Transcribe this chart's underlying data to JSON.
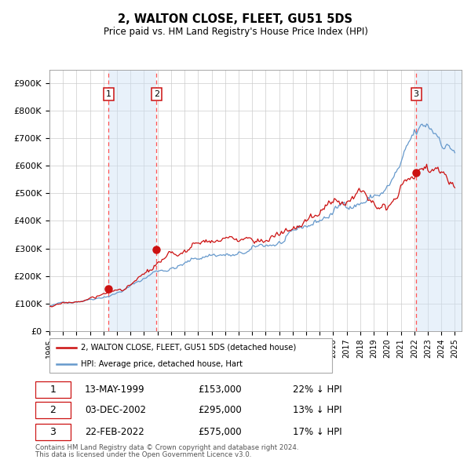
{
  "title": "2, WALTON CLOSE, FLEET, GU51 5DS",
  "subtitle": "Price paid vs. HM Land Registry's House Price Index (HPI)",
  "ytick_labels": [
    "£0",
    "£100K",
    "£200K",
    "£300K",
    "£400K",
    "£500K",
    "£600K",
    "£700K",
    "£800K",
    "£900K"
  ],
  "yticks": [
    0,
    100000,
    200000,
    300000,
    400000,
    500000,
    600000,
    700000,
    800000,
    900000
  ],
  "ylim": [
    0,
    950000
  ],
  "xlim_start": 1995,
  "xlim_end": 2025.5,
  "transactions": [
    {
      "label": "1",
      "date": "13-MAY-1999",
      "year": 1999.37,
      "price": 153000,
      "pct_text": "22% ↓ HPI"
    },
    {
      "label": "2",
      "date": "03-DEC-2002",
      "year": 2002.92,
      "price": 295000,
      "pct_text": "13% ↓ HPI"
    },
    {
      "label": "3",
      "date": "22-FEB-2022",
      "year": 2022.14,
      "price": 575000,
      "pct_text": "17% ↓ HPI"
    }
  ],
  "hpi_color": "#6699cc",
  "price_color": "#cc1111",
  "marker_color": "#cc1111",
  "shade_color": "#cce0f5",
  "vline_color": "#ff5555",
  "grid_color": "#cccccc",
  "legend_line1": "2, WALTON CLOSE, FLEET, GU51 5DS (detached house)",
  "legend_line2": "HPI: Average price, detached house, Hart",
  "footer1": "Contains HM Land Registry data © Crown copyright and database right 2024.",
  "footer2": "This data is licensed under the Open Government Licence v3.0."
}
